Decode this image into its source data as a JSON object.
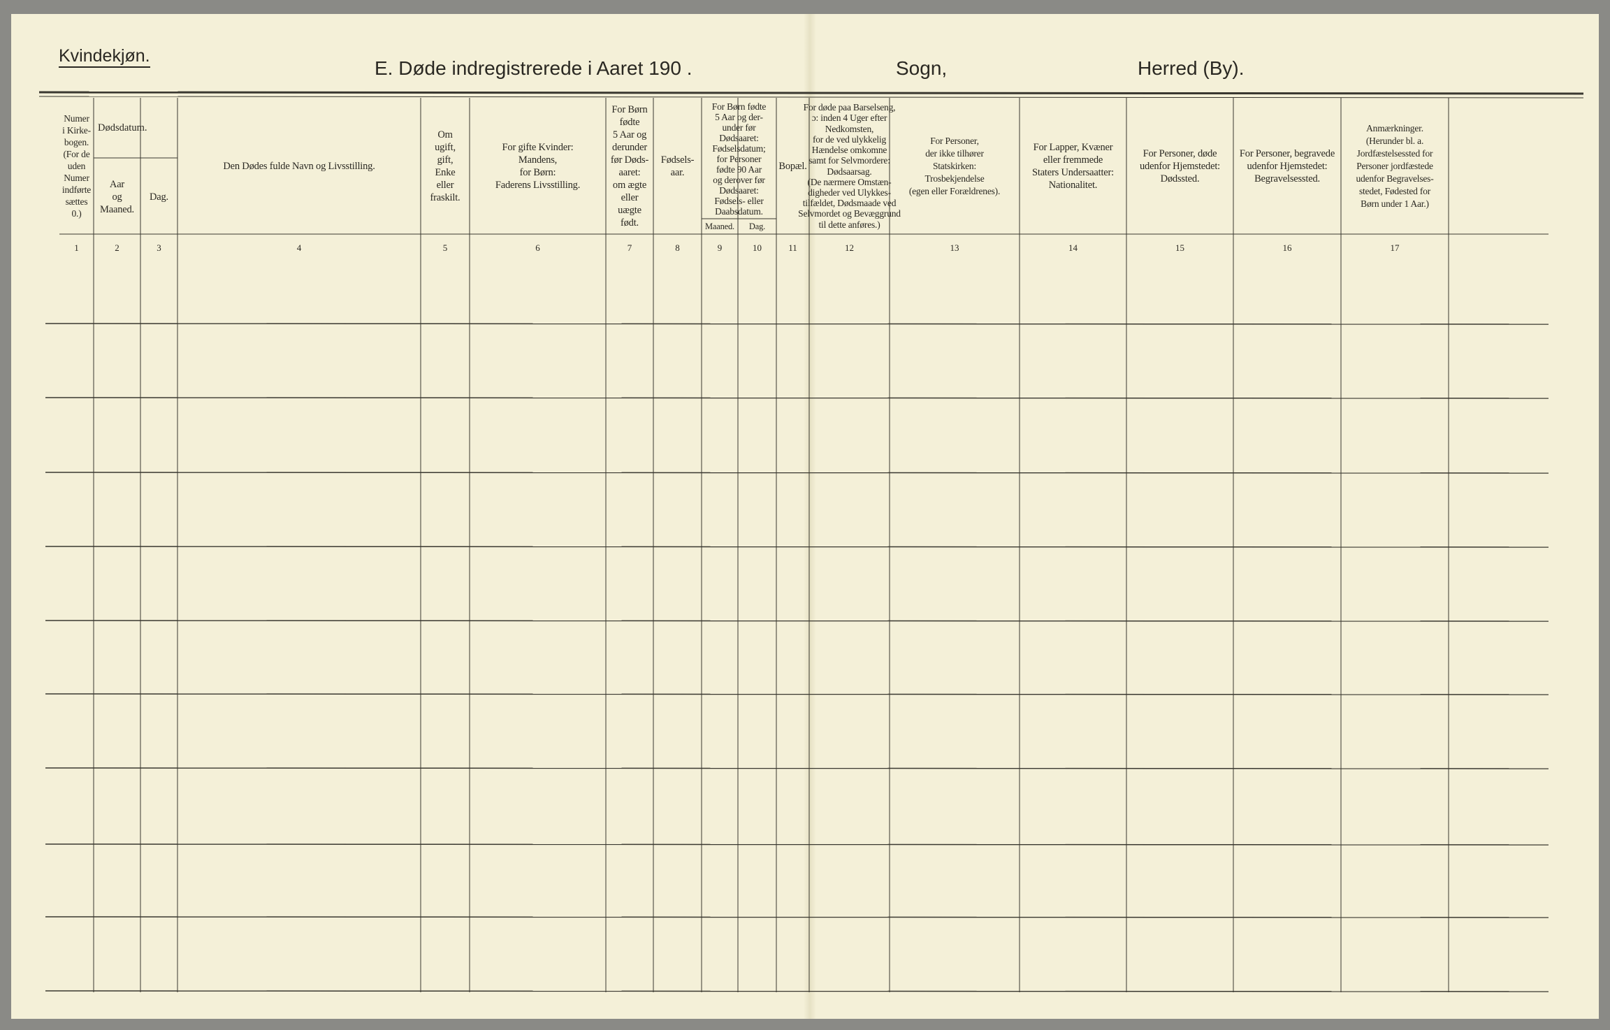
{
  "header": {
    "gender_label": "Kvindekjøn.",
    "title": "E.  Døde indregistrerede i Aaret 190  .",
    "parish_label": "Sogn,",
    "district_label": "Herred (By)."
  },
  "columns": [
    {
      "number": "1",
      "lines": [
        "Numer",
        "i Kirke-",
        "bogen.",
        "(For de",
        "uden",
        "Numer",
        "indførte",
        "sættes",
        "0.)"
      ]
    },
    {
      "number": "2",
      "lines": [
        "Aar",
        "og",
        "Maaned."
      ]
    },
    {
      "number": "3",
      "lines": [
        "Dag."
      ]
    },
    {
      "number": "4",
      "lines": [
        "Den Dødes fulde Navn og Livsstilling."
      ]
    },
    {
      "number": "5",
      "lines": [
        "Om",
        "ugift,",
        "gift,",
        "Enke",
        "eller",
        "fraskilt."
      ]
    },
    {
      "number": "6",
      "lines": [
        "For gifte Kvinder:",
        "Mandens,",
        "for Børn:",
        "Faderens Livsstilling."
      ]
    },
    {
      "number": "7",
      "lines": [
        "For Børn",
        "fødte",
        "5 Aar og",
        "derunder",
        "før Døds-",
        "aaret:",
        "om ægte",
        "eller",
        "uægte",
        "født."
      ]
    },
    {
      "number": "8",
      "lines": [
        "Fødsels-",
        "aar."
      ]
    },
    {
      "number": "9",
      "lines": [
        "Maaned."
      ]
    },
    {
      "number": "10",
      "lines": [
        "Dag."
      ]
    },
    {
      "number": "11",
      "lines": [
        "Bopæl."
      ]
    },
    {
      "number": "12",
      "lines": [
        "For døde paa Barselseng,",
        "ɔ: inden 4 Uger efter",
        "Nedkomsten,",
        "for de ved ulykkelig",
        "Hændelse omkomne",
        "samt for Selvmordere:",
        "Dødsaarsag.",
        "(De nærmere Omstæn-",
        "digheder ved Ulykkes-",
        "tilfældet, Dødsmaade ved",
        "Selvmordet og Bevæggrund",
        "til dette anføres.)"
      ]
    },
    {
      "number": "13",
      "lines": [
        "For Personer,",
        "der ikke tilhører",
        "Statskirken:",
        "Trosbekjendelse",
        "(egen eller Forældrenes)."
      ]
    },
    {
      "number": "14",
      "lines": [
        "For Lapper, Kvæner",
        "eller fremmede",
        "Staters Undersaatter:",
        "Nationalitet."
      ]
    },
    {
      "number": "15",
      "lines": [
        "For Personer, døde",
        "udenfor Hjemstedet:",
        "Dødssted."
      ]
    },
    {
      "number": "16",
      "lines": [
        "For Personer, begravede",
        "udenfor Hjemstedet:",
        "Begravelsessted."
      ]
    },
    {
      "number": "17",
      "lines": [
        "Anmærkninger.",
        "(Herunder bl. a.",
        "Jordfæstelsessted for",
        "Personer jordfæstede",
        "udenfor Begravelses-",
        "stedet, Fødested for",
        "Børn under 1 Aar.)"
      ]
    }
  ],
  "group_headers": {
    "death_date": "Dødsdatum.",
    "birth_date": [
      "For Børn fødte",
      "5 Aar og der-",
      "under før",
      "Dødsaaret:",
      "Fødselsdatum;",
      "for Personer",
      "fødte 90 Aar",
      "og derover før",
      "Dødsaaret:",
      "Fødsels- eller",
      "Daabsdatum."
    ]
  },
  "entry_rows": 10
}
